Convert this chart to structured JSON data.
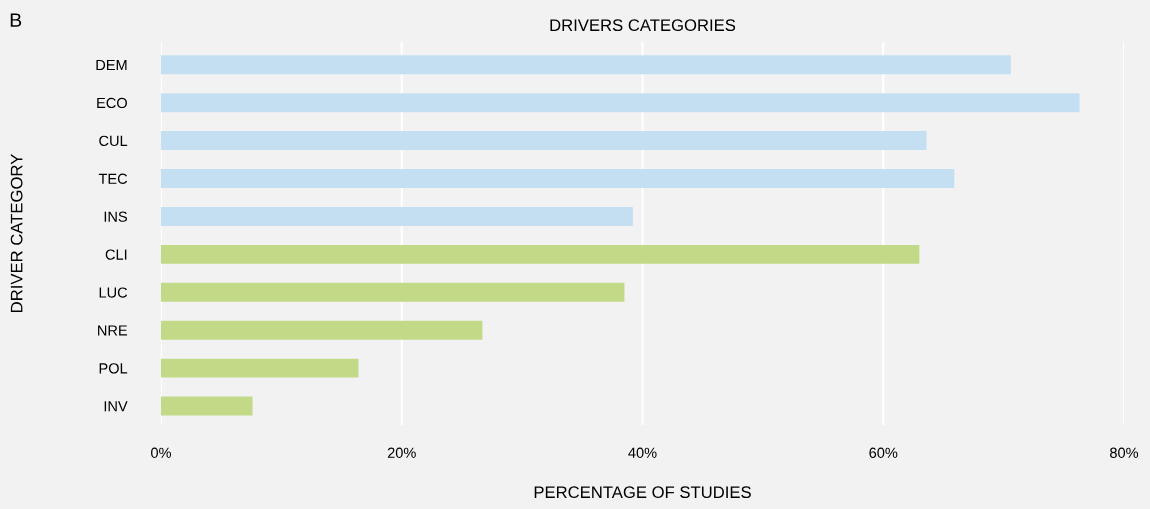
{
  "chart_data": {
    "type": "bar",
    "orientation": "horizontal",
    "title": "DRIVERS CATEGORIES",
    "xlabel": "PERCENTAGE OF STUDIES",
    "ylabel": "DRIVER CATEGORY",
    "annotations": [
      "B"
    ],
    "categories": [
      "DEM",
      "ECO",
      "CUL",
      "TEC",
      "INS",
      "CLI",
      "LUC",
      "NRE",
      "POL",
      "INV"
    ],
    "values": [
      70.6,
      76.3,
      63.6,
      65.9,
      39.2,
      63.0,
      38.5,
      26.7,
      16.4,
      7.6
    ],
    "colors": [
      "#c5dff2",
      "#c5dff2",
      "#c5dff2",
      "#c5dff2",
      "#c5dff2",
      "#c2d987",
      "#c2d987",
      "#c2d987",
      "#c2d987",
      "#c2d987"
    ],
    "xlim": [
      0,
      80
    ],
    "xticks": [
      {
        "value": 0,
        "label": "0%"
      },
      {
        "value": 20,
        "label": "20%"
      },
      {
        "value": 40,
        "label": "40%"
      },
      {
        "value": 60,
        "label": "60%"
      },
      {
        "value": 80,
        "label": "80%"
      }
    ],
    "grid": "x",
    "legend": false
  }
}
